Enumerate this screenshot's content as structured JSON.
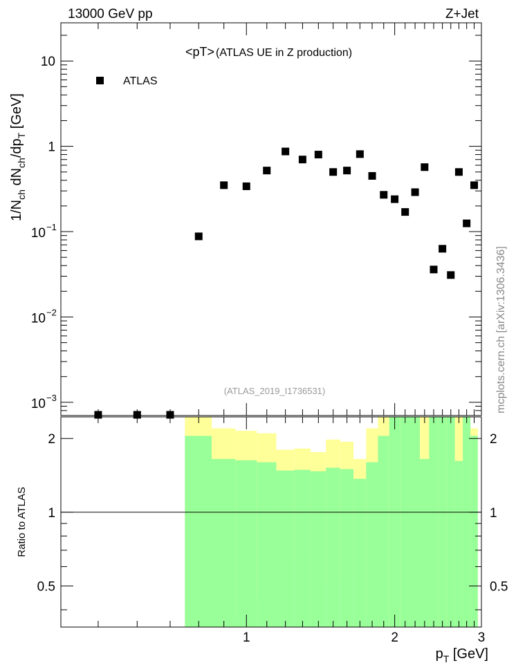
{
  "header": {
    "energy_label": "13000 GeV pp",
    "process_label": "Z+Jet"
  },
  "side_label": "mcplots.cern.ch [arXiv:1306.3436]",
  "chart_data": [
    {
      "type": "scatter",
      "title": "<pT> (ATLAS UE in Z production)",
      "title_main": "<pT>",
      "title_sub": "(ATLAS UE in Z production)",
      "analysis_label": "(ATLAS_2019_I1736531)",
      "xlabel": "p_T [GeV]",
      "ylabel": "1/N_ch dN_ch/dp_T [GeV]",
      "y_scale": "log",
      "ylim": [
        0.0007,
        28
      ],
      "xlim": [
        0.42,
        3.0
      ],
      "legend": {
        "placement": "top-left",
        "entries": [
          "ATLAS"
        ]
      },
      "y_ticks": [
        {
          "value": 10,
          "label": "10"
        },
        {
          "value": 1,
          "label": "1"
        },
        {
          "value": 0.1,
          "label": "10",
          "exp": "−1"
        },
        {
          "value": 0.01,
          "label": "10",
          "exp": "−2"
        },
        {
          "value": 0.001,
          "label": "10",
          "exp": "−3"
        }
      ],
      "series": [
        {
          "name": "ATLAS",
          "color": "#000000",
          "marker": "square",
          "x": [
            0.5,
            0.6,
            0.7,
            0.8,
            0.9,
            1.0,
            1.1,
            1.2,
            1.3,
            1.4,
            1.5,
            1.6,
            1.7,
            1.8,
            1.9,
            2.0,
            2.1,
            2.2,
            2.3,
            2.4,
            2.5,
            2.6,
            2.7,
            2.8,
            2.9
          ],
          "y": [
            0.0007,
            0.0007,
            0.0007,
            0.088,
            0.35,
            0.34,
            0.52,
            0.87,
            0.7,
            0.8,
            0.5,
            0.52,
            0.81,
            0.45,
            0.27,
            0.24,
            0.17,
            0.29,
            0.57,
            0.036,
            0.063,
            0.031,
            0.5,
            0.125,
            0.35
          ]
        }
      ]
    },
    {
      "type": "area",
      "ylabel": "Ratio to ATLAS",
      "xlabel": "p_T [GeV]",
      "ylim": [
        0.34,
        2.45
      ],
      "xlim": [
        0.42,
        3.0
      ],
      "reference_line": 1,
      "y_ticks": [
        "0.5",
        "1",
        "2"
      ],
      "x_ticks": [
        "1",
        "2",
        "3"
      ],
      "colors": {
        "inner_band": "#99ff99",
        "outer_band": "#ffff99",
        "reference": "#000000"
      },
      "bins": {
        "low_edges": [
          0.75,
          0.85,
          0.95,
          1.05,
          1.15,
          1.25,
          1.35,
          1.45,
          1.55,
          1.65,
          1.75,
          1.85,
          1.95,
          2.05,
          2.15,
          2.25,
          2.35,
          2.45,
          2.55,
          2.65,
          2.75,
          2.85
        ],
        "high_edges": [
          0.85,
          0.95,
          1.05,
          1.15,
          1.25,
          1.35,
          1.45,
          1.55,
          1.65,
          1.75,
          1.85,
          1.95,
          2.05,
          2.15,
          2.25,
          2.35,
          2.45,
          2.55,
          2.65,
          2.75,
          2.85,
          2.95
        ],
        "inner_low": [
          0.34,
          0.34,
          0.34,
          0.34,
          0.34,
          0.34,
          0.34,
          0.34,
          0.34,
          0.34,
          0.34,
          0.34,
          0.34,
          0.34,
          0.34,
          0.34,
          0.34,
          0.34,
          0.34,
          0.34,
          0.34,
          0.34
        ],
        "inner_high": [
          2.05,
          1.65,
          1.63,
          1.6,
          1.48,
          1.49,
          1.47,
          1.52,
          1.5,
          1.37,
          1.6,
          2.05,
          2.45,
          2.45,
          2.45,
          1.65,
          2.45,
          2.45,
          2.45,
          1.62,
          2.45,
          2.05
        ],
        "outer_low": [
          0.34,
          0.34,
          0.37,
          0.46,
          0.64,
          0.63,
          0.68,
          0.51,
          0.55,
          0.72,
          0.39,
          0.34,
          0.34,
          0.34,
          0.34,
          0.34,
          0.34,
          0.34,
          0.34,
          0.52,
          0.34,
          0.34
        ],
        "outer_high": [
          2.45,
          2.2,
          2.15,
          2.1,
          1.8,
          1.82,
          1.76,
          1.98,
          1.94,
          1.65,
          2.2,
          2.45,
          2.45,
          2.45,
          2.25,
          2.45,
          2.2,
          2.45,
          2.45,
          2.45,
          2.45,
          2.2
        ]
      }
    }
  ]
}
